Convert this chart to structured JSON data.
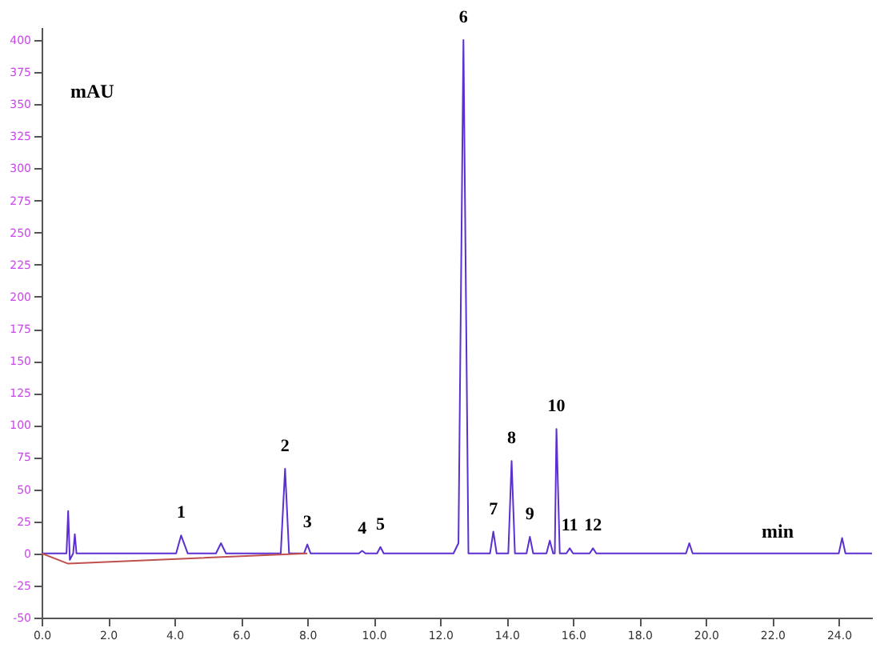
{
  "chart_data": {
    "type": "line",
    "xlabel": "min",
    "ylabel": "mAU",
    "series": [
      {
        "color": "#5b2fd0",
        "x": [
          0,
          0.75,
          0.8,
          0.85,
          0.95,
          1.0,
          1.05,
          4.05,
          4.2,
          4.4,
          5.25,
          5.4,
          5.55,
          7.2,
          7.33,
          7.45,
          7.9,
          8.0,
          8.1,
          9.55,
          9.65,
          9.75,
          10.1,
          10.2,
          10.3,
          12.4,
          12.55,
          12.7,
          12.85,
          13.5,
          13.6,
          13.7,
          14.05,
          14.15,
          14.25,
          14.6,
          14.7,
          14.8,
          15.2,
          15.3,
          15.4,
          15.45,
          15.5,
          15.6,
          15.8,
          15.9,
          16.0,
          16.5,
          16.6,
          16.7,
          19.4,
          19.5,
          19.6,
          24.0,
          24.1,
          24.2,
          25
        ],
        "values": [
          0,
          0,
          33,
          -5,
          0,
          15,
          0,
          0,
          14,
          0,
          0,
          8,
          0,
          0,
          66,
          0,
          0,
          7,
          0,
          0,
          2,
          0,
          0,
          5,
          0,
          0,
          8,
          400,
          0,
          0,
          17,
          0,
          0,
          72,
          0,
          0,
          13,
          0,
          0,
          10,
          0,
          0,
          97,
          0,
          0,
          4,
          0,
          0,
          4,
          0,
          0,
          8,
          0,
          0,
          12,
          0,
          0
        ]
      },
      {
        "color": "#c0504d",
        "x": [
          0,
          0.8,
          8.0
        ],
        "values": [
          0,
          -8,
          0
        ]
      }
    ],
    "xlim": [
      0,
      25
    ],
    "ylim": [
      -50,
      410
    ],
    "xticks": [
      {
        "value": 0,
        "label": "0.0"
      },
      {
        "value": 2,
        "label": "2.0"
      },
      {
        "value": 4,
        "label": "4.0"
      },
      {
        "value": 6,
        "label": "6.0"
      },
      {
        "value": 8,
        "label": "8.0"
      },
      {
        "value": 10,
        "label": "10.0"
      },
      {
        "value": 12,
        "label": "12.0"
      },
      {
        "value": 14,
        "label": "14.0"
      },
      {
        "value": 16,
        "label": "16.0"
      },
      {
        "value": 18,
        "label": "18.0"
      },
      {
        "value": 20,
        "label": "20.0"
      },
      {
        "value": 22,
        "label": "22.0"
      },
      {
        "value": 24,
        "label": "24.0"
      }
    ],
    "yticks": [
      -50,
      -25,
      0,
      25,
      50,
      75,
      100,
      125,
      150,
      175,
      200,
      225,
      250,
      275,
      300,
      325,
      350,
      375,
      400
    ],
    "annotations": [
      {
        "text": "1",
        "x": 4.2,
        "y": 14
      },
      {
        "text": "2",
        "x": 7.33,
        "y": 66
      },
      {
        "text": "3",
        "x": 8.0,
        "y": 7
      },
      {
        "text": "4",
        "x": 9.65,
        "y": 2
      },
      {
        "text": "5",
        "x": 10.2,
        "y": 5
      },
      {
        "text": "6",
        "x": 12.7,
        "y": 400
      },
      {
        "text": "7",
        "x": 13.6,
        "y": 17
      },
      {
        "text": "8",
        "x": 14.15,
        "y": 72
      },
      {
        "text": "9",
        "x": 14.7,
        "y": 13
      },
      {
        "text": "10",
        "x": 15.5,
        "y": 97
      },
      {
        "text": "11",
        "x": 15.9,
        "y": 4
      },
      {
        "text": "12",
        "x": 16.6,
        "y": 4
      }
    ],
    "grid": false,
    "marker": "none",
    "line_style": "solid"
  }
}
